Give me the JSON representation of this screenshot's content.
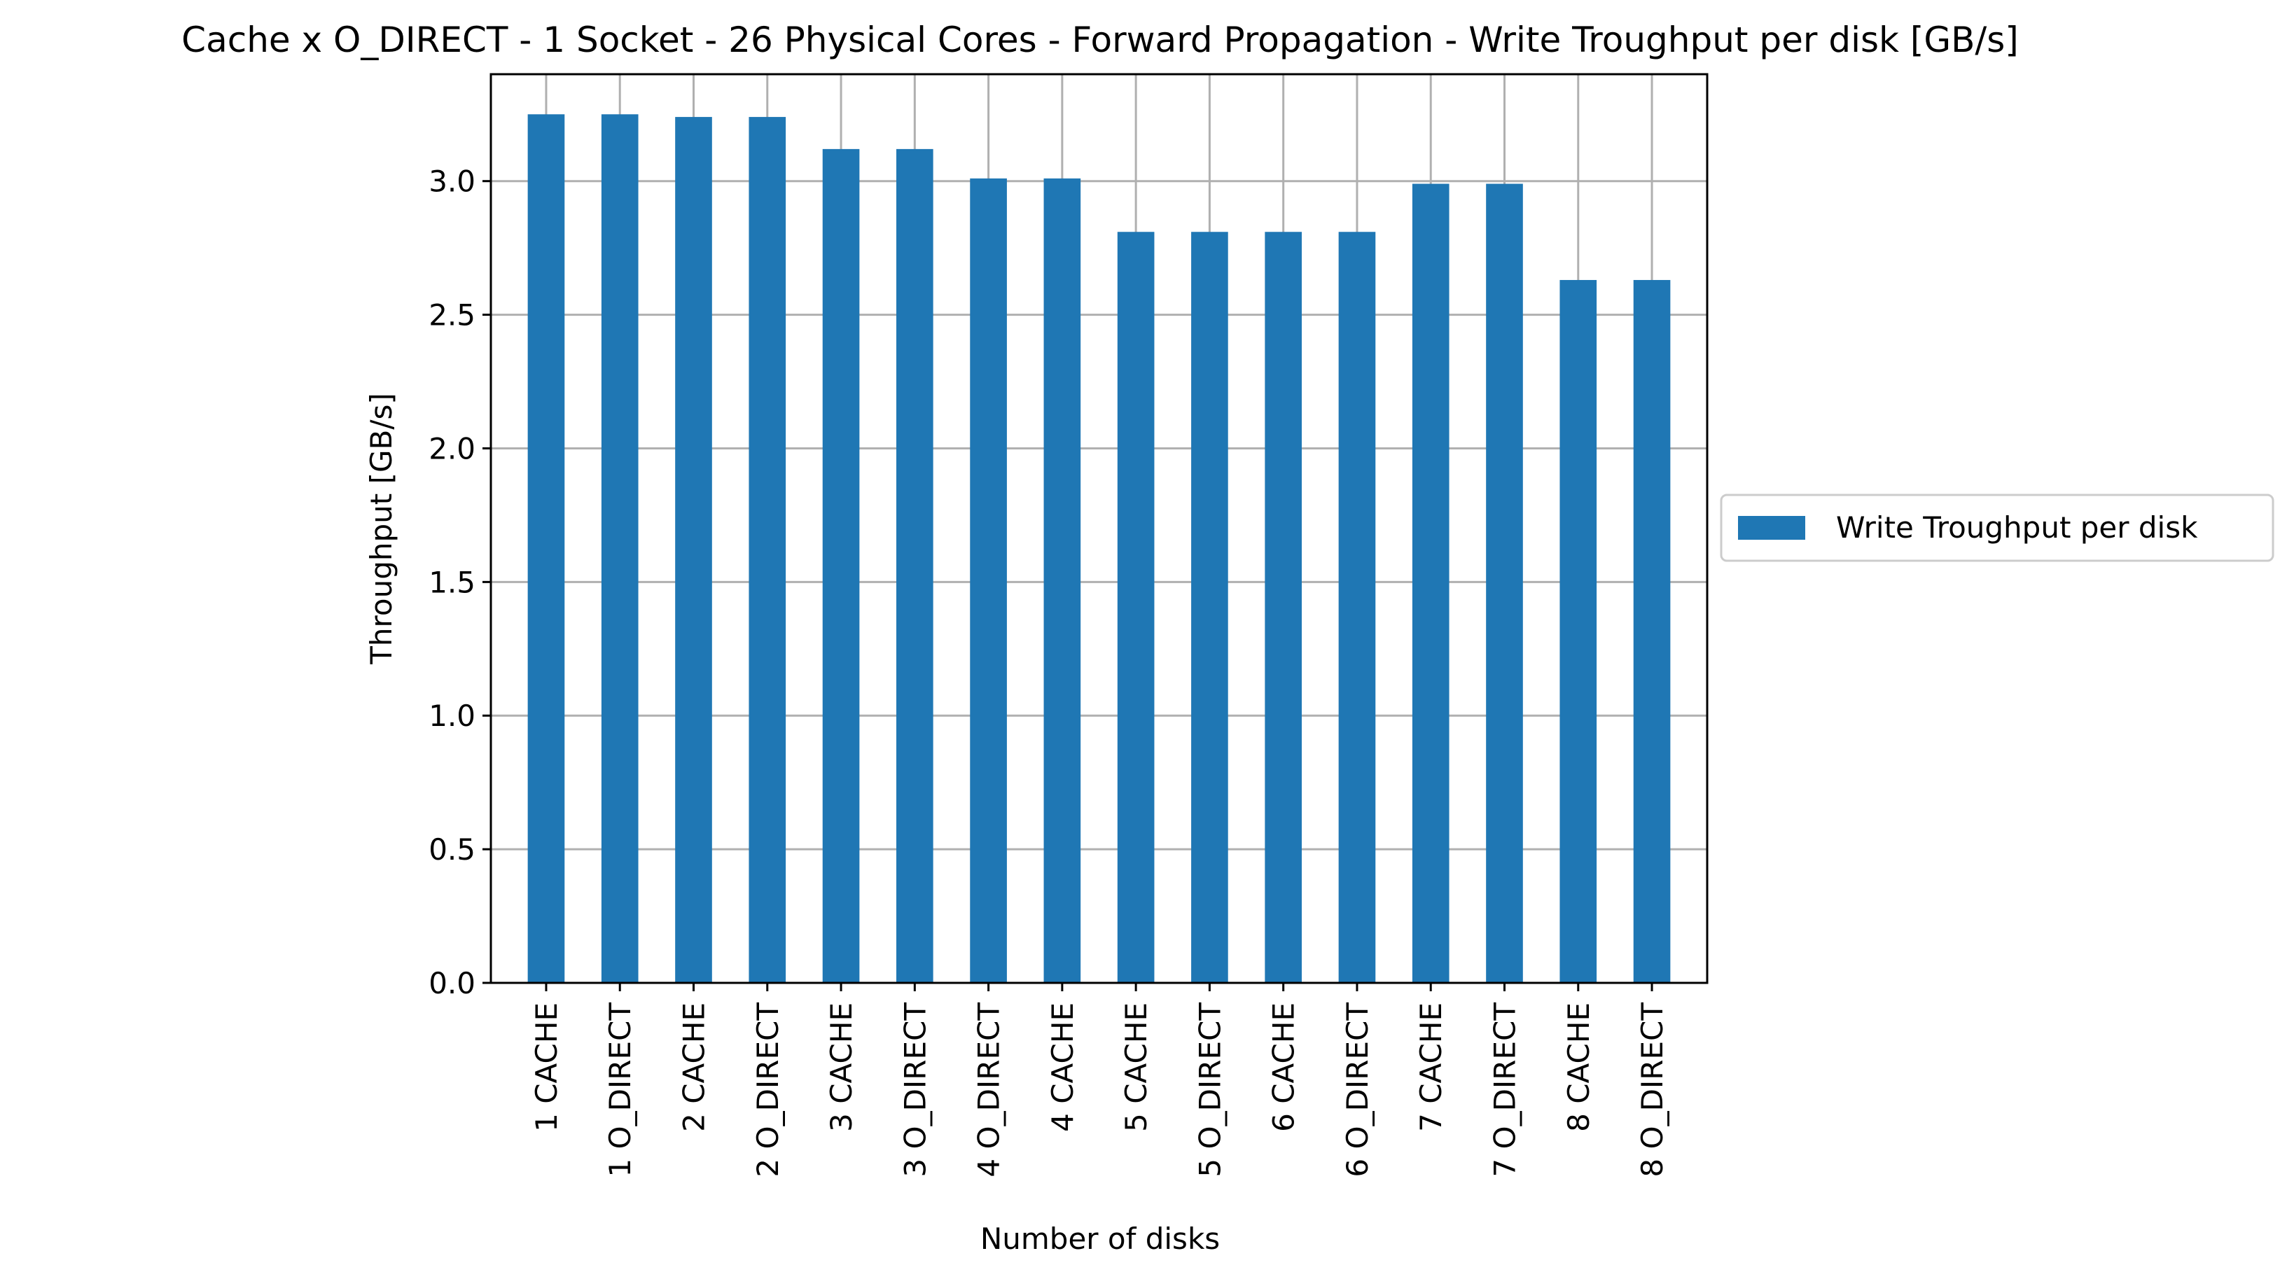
{
  "chart_data": {
    "type": "bar",
    "title": "Cache x O_DIRECT - 1 Socket - 26 Physical Cores - Forward Propagation - Write Troughput per disk [GB/s]",
    "xlabel": "Number of disks",
    "ylabel": "Throughput [GB/s]",
    "categories": [
      "1 CACHE",
      "1 O_DIRECT",
      "2 CACHE",
      "2 O_DIRECT",
      "3 CACHE",
      "3 O_DIRECT",
      "4 O_DIRECT",
      "4 CACHE",
      "5 CACHE",
      "5 O_DIRECT",
      "6 CACHE",
      "6 O_DIRECT",
      "7 CACHE",
      "7 O_DIRECT",
      "8 CACHE",
      "8 O_DIRECT"
    ],
    "series": [
      {
        "name": "Write Troughput per disk",
        "color": "#1f77b4",
        "values": [
          3.25,
          3.25,
          3.24,
          3.24,
          3.12,
          3.12,
          3.01,
          3.01,
          2.81,
          2.81,
          2.81,
          2.81,
          2.99,
          2.99,
          2.63,
          2.63
        ]
      }
    ],
    "ylim": [
      0,
      3.4
    ],
    "yticks": [
      "0.0",
      "0.5",
      "1.0",
      "1.5",
      "2.0",
      "2.5",
      "3.0"
    ],
    "grid": true,
    "legend": "right-outside"
  }
}
